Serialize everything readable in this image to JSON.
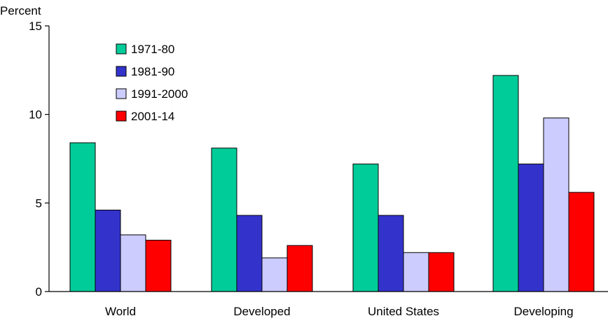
{
  "chart_data": {
    "type": "bar",
    "ylabel": "Percent",
    "ylim": [
      0,
      15
    ],
    "yticks": [
      "0",
      "5",
      "10",
      "15"
    ],
    "categories": [
      "World",
      "Developed",
      "United States",
      "Developing"
    ],
    "series": [
      {
        "name": "1971-80",
        "color": "#00cc99",
        "values": [
          8.4,
          8.1,
          7.2,
          12.2
        ]
      },
      {
        "name": "1981-90",
        "color": "#3333cc",
        "values": [
          4.6,
          4.3,
          4.3,
          7.2
        ]
      },
      {
        "name": "1991-2000",
        "color": "#ccccff",
        "values": [
          3.2,
          1.9,
          2.2,
          9.8
        ]
      },
      {
        "name": "2001-14",
        "color": "#ff0000",
        "values": [
          2.9,
          2.6,
          2.2,
          5.6
        ]
      }
    ],
    "legend_position": "top-left",
    "grid": false
  }
}
